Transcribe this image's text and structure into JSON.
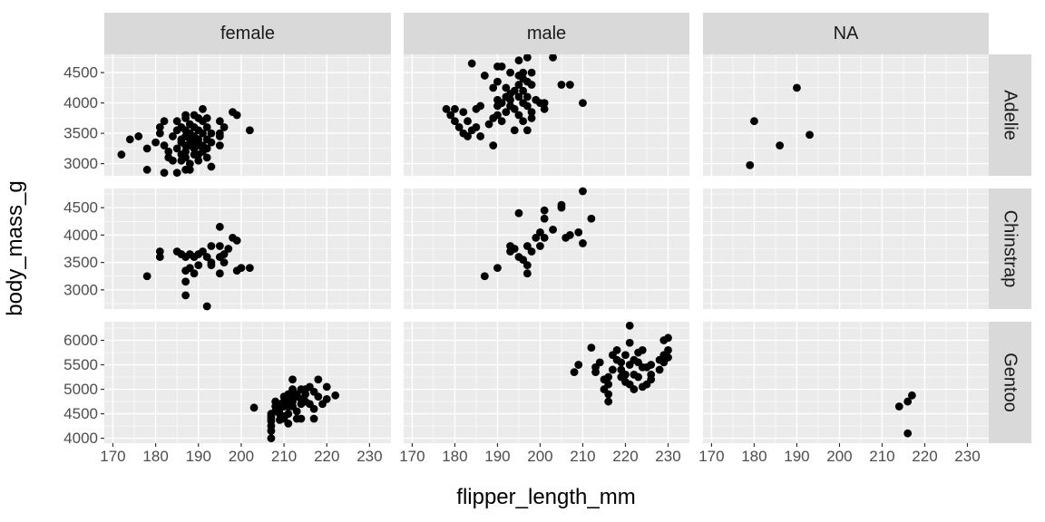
{
  "chart_data": {
    "type": "scatter",
    "xlabel": "flipper_length_mm",
    "ylabel": "body_mass_g",
    "xlim": [
      168,
      235
    ],
    "x_ticks": [
      170,
      180,
      190,
      200,
      210,
      220,
      230
    ],
    "facet_cols": [
      "female",
      "male",
      "NA"
    ],
    "facet_rows": [
      "Adelie",
      "Chinstrap",
      "Gentoo"
    ],
    "rows_scales": [
      {
        "ylim": [
          2800,
          4800
        ],
        "ticks": [
          3000,
          3500,
          4000,
          4500
        ]
      },
      {
        "ylim": [
          2650,
          4850
        ],
        "ticks": [
          3000,
          3500,
          4000,
          4500
        ]
      },
      {
        "ylim": [
          3900,
          6380
        ],
        "ticks": [
          4000,
          4500,
          5000,
          5500,
          6000
        ]
      }
    ],
    "grid": true,
    "panels": [
      {
        "row": "Adelie",
        "col": "female",
        "points": [
          [
            172,
            3150
          ],
          [
            174,
            3400
          ],
          [
            176,
            3450
          ],
          [
            178,
            3250
          ],
          [
            178,
            2900
          ],
          [
            180,
            3350
          ],
          [
            181,
            3500
          ],
          [
            181,
            3600
          ],
          [
            182,
            3700
          ],
          [
            182,
            3300
          ],
          [
            182,
            2850
          ],
          [
            183,
            3200
          ],
          [
            183,
            3100
          ],
          [
            184,
            3050
          ],
          [
            184,
            3450
          ],
          [
            185,
            2850
          ],
          [
            185,
            3550
          ],
          [
            185,
            3700
          ],
          [
            185,
            3250
          ],
          [
            186,
            3600
          ],
          [
            186,
            3400
          ],
          [
            186,
            3350
          ],
          [
            186,
            3150
          ],
          [
            186,
            3050
          ],
          [
            187,
            3800
          ],
          [
            187,
            3750
          ],
          [
            187,
            3550
          ],
          [
            187,
            3450
          ],
          [
            187,
            3300
          ],
          [
            187,
            3200
          ],
          [
            187,
            3100
          ],
          [
            187,
            2900
          ],
          [
            188,
            3650
          ],
          [
            188,
            3500
          ],
          [
            188,
            3400
          ],
          [
            188,
            3300
          ],
          [
            188,
            3000
          ],
          [
            188,
            2900
          ],
          [
            189,
            3800
          ],
          [
            189,
            3600
          ],
          [
            189,
            3450
          ],
          [
            189,
            3350
          ],
          [
            189,
            3250
          ],
          [
            189,
            3150
          ],
          [
            190,
            3750
          ],
          [
            190,
            3550
          ],
          [
            190,
            3400
          ],
          [
            190,
            3300
          ],
          [
            190,
            3150
          ],
          [
            190,
            3050
          ],
          [
            191,
            3900
          ],
          [
            191,
            3700
          ],
          [
            191,
            3500
          ],
          [
            191,
            3300
          ],
          [
            191,
            3200
          ],
          [
            192,
            3750
          ],
          [
            192,
            3600
          ],
          [
            192,
            3400
          ],
          [
            192,
            3250
          ],
          [
            192,
            3100
          ],
          [
            193,
            3500
          ],
          [
            193,
            3350
          ],
          [
            193,
            2950
          ],
          [
            195,
            3700
          ],
          [
            195,
            3500
          ],
          [
            195,
            3450
          ],
          [
            195,
            3300
          ],
          [
            196,
            3600
          ],
          [
            198,
            3850
          ],
          [
            199,
            3800
          ],
          [
            202,
            3550
          ]
        ]
      },
      {
        "row": "Adelie",
        "col": "male",
        "points": [
          [
            178,
            3900
          ],
          [
            179,
            3800
          ],
          [
            180,
            3900
          ],
          [
            180,
            3700
          ],
          [
            181,
            3600
          ],
          [
            182,
            3850
          ],
          [
            182,
            3500
          ],
          [
            183,
            3450
          ],
          [
            183,
            3700
          ],
          [
            184,
            4650
          ],
          [
            184,
            3550
          ],
          [
            185,
            3900
          ],
          [
            185,
            3600
          ],
          [
            186,
            3950
          ],
          [
            186,
            3450
          ],
          [
            187,
            4450
          ],
          [
            188,
            3650
          ],
          [
            189,
            4250
          ],
          [
            189,
            3750
          ],
          [
            189,
            3300
          ],
          [
            190,
            4600
          ],
          [
            190,
            4350
          ],
          [
            190,
            4050
          ],
          [
            190,
            3950
          ],
          [
            190,
            3800
          ],
          [
            191,
            4600
          ],
          [
            191,
            4000
          ],
          [
            191,
            3700
          ],
          [
            192,
            4250
          ],
          [
            192,
            4100
          ],
          [
            192,
            3850
          ],
          [
            193,
            4500
          ],
          [
            193,
            4150
          ],
          [
            193,
            4050
          ],
          [
            193,
            3950
          ],
          [
            194,
            4200
          ],
          [
            194,
            3900
          ],
          [
            194,
            3550
          ],
          [
            195,
            4700
          ],
          [
            195,
            4450
          ],
          [
            195,
            4300
          ],
          [
            195,
            4100
          ],
          [
            195,
            3800
          ],
          [
            196,
            4500
          ],
          [
            196,
            4400
          ],
          [
            196,
            4200
          ],
          [
            196,
            4000
          ],
          [
            196,
            3700
          ],
          [
            197,
            4750
          ],
          [
            197,
            4350
          ],
          [
            197,
            4100
          ],
          [
            197,
            3950
          ],
          [
            197,
            3550
          ],
          [
            198,
            4500
          ],
          [
            198,
            4300
          ],
          [
            198,
            3850
          ],
          [
            198,
            3750
          ],
          [
            199,
            4050
          ],
          [
            200,
            4000
          ],
          [
            201,
            4000
          ],
          [
            201,
            3900
          ],
          [
            203,
            4750
          ],
          [
            205,
            4300
          ],
          [
            207,
            4300
          ],
          [
            210,
            4000
          ]
        ]
      },
      {
        "row": "Adelie",
        "col": "NA",
        "points": [
          [
            179,
            2975
          ],
          [
            180,
            3700
          ],
          [
            186,
            3300
          ],
          [
            190,
            4250
          ],
          [
            193,
            3475
          ]
        ]
      },
      {
        "row": "Chinstrap",
        "col": "female",
        "points": [
          [
            178,
            3250
          ],
          [
            181,
            3700
          ],
          [
            181,
            3600
          ],
          [
            185,
            3700
          ],
          [
            186,
            3650
          ],
          [
            187,
            3600
          ],
          [
            187,
            3350
          ],
          [
            187,
            3150
          ],
          [
            187,
            2900
          ],
          [
            188,
            3650
          ],
          [
            188,
            3400
          ],
          [
            189,
            3600
          ],
          [
            189,
            3300
          ],
          [
            190,
            3650
          ],
          [
            190,
            3450
          ],
          [
            191,
            3700
          ],
          [
            192,
            2700
          ],
          [
            192,
            3600
          ],
          [
            193,
            3800
          ],
          [
            193,
            3450
          ],
          [
            193,
            3500
          ],
          [
            195,
            4150
          ],
          [
            195,
            3800
          ],
          [
            195,
            3600
          ],
          [
            195,
            3300
          ],
          [
            196,
            3650
          ],
          [
            196,
            3500
          ],
          [
            197,
            3750
          ],
          [
            198,
            3950
          ],
          [
            199,
            3900
          ],
          [
            199,
            3350
          ],
          [
            200,
            3400
          ],
          [
            202,
            3400
          ]
        ]
      },
      {
        "row": "Chinstrap",
        "col": "male",
        "points": [
          [
            187,
            3250
          ],
          [
            190,
            3400
          ],
          [
            193,
            3800
          ],
          [
            193,
            3700
          ],
          [
            194,
            3750
          ],
          [
            195,
            4400
          ],
          [
            195,
            3600
          ],
          [
            196,
            3550
          ],
          [
            197,
            3800
          ],
          [
            197,
            3450
          ],
          [
            197,
            3300
          ],
          [
            198,
            3700
          ],
          [
            199,
            3950
          ],
          [
            200,
            4050
          ],
          [
            200,
            3800
          ],
          [
            201,
            4450
          ],
          [
            201,
            4300
          ],
          [
            201,
            3950
          ],
          [
            203,
            4100
          ],
          [
            205,
            4550
          ],
          [
            205,
            4500
          ],
          [
            206,
            3950
          ],
          [
            207,
            4000
          ],
          [
            209,
            4050
          ],
          [
            210,
            4800
          ],
          [
            210,
            3850
          ],
          [
            212,
            4300
          ]
        ]
      },
      {
        "row": "Chinstrap",
        "col": "NA",
        "points": []
      },
      {
        "row": "Gentoo",
        "col": "female",
        "points": [
          [
            203,
            4625
          ],
          [
            207,
            4000
          ],
          [
            207,
            4150
          ],
          [
            207,
            4250
          ],
          [
            207,
            4350
          ],
          [
            207,
            4400
          ],
          [
            207,
            4450
          ],
          [
            207,
            4500
          ],
          [
            208,
            4550
          ],
          [
            208,
            4650
          ],
          [
            208,
            4750
          ],
          [
            209,
            4375
          ],
          [
            209,
            4500
          ],
          [
            209,
            4600
          ],
          [
            209,
            4700
          ],
          [
            210,
            4750
          ],
          [
            210,
            4450
          ],
          [
            210,
            4850
          ],
          [
            210,
            4400
          ],
          [
            210,
            4650
          ],
          [
            211,
            4650
          ],
          [
            211,
            4800
          ],
          [
            211,
            4900
          ],
          [
            211,
            4500
          ],
          [
            211,
            4300
          ],
          [
            212,
            4875
          ],
          [
            212,
            4650
          ],
          [
            212,
            5000
          ],
          [
            212,
            4750
          ],
          [
            213,
            4550
          ],
          [
            213,
            4850
          ],
          [
            213,
            4900
          ],
          [
            213,
            4400
          ],
          [
            214,
            5000
          ],
          [
            214,
            4800
          ],
          [
            214,
            4700
          ],
          [
            215,
            5000
          ],
          [
            215,
            4750
          ],
          [
            215,
            4900
          ],
          [
            216,
            5050
          ],
          [
            216,
            4700
          ],
          [
            217,
            4950
          ],
          [
            217,
            4600
          ],
          [
            217,
            4400
          ],
          [
            218,
            5200
          ],
          [
            218,
            4850
          ],
          [
            219,
            4700
          ],
          [
            220,
            5050
          ],
          [
            220,
            4800
          ],
          [
            222,
            4875
          ],
          [
            212,
            5200
          ],
          [
            214,
            4400
          ]
        ]
      },
      {
        "row": "Gentoo",
        "col": "male",
        "points": [
          [
            208,
            5350
          ],
          [
            209,
            5500
          ],
          [
            212,
            5850
          ],
          [
            213,
            5450
          ],
          [
            213,
            5350
          ],
          [
            214,
            5550
          ],
          [
            215,
            5200
          ],
          [
            215,
            5000
          ],
          [
            216,
            5100
          ],
          [
            216,
            4900
          ],
          [
            216,
            4750
          ],
          [
            217,
            5700
          ],
          [
            217,
            5400
          ],
          [
            218,
            5600
          ],
          [
            218,
            5800
          ],
          [
            219,
            5550
          ],
          [
            219,
            5250
          ],
          [
            220,
            5700
          ],
          [
            220,
            5300
          ],
          [
            220,
            5150
          ],
          [
            221,
            6300
          ],
          [
            221,
            5950
          ],
          [
            221,
            5500
          ],
          [
            221,
            5100
          ],
          [
            222,
            5600
          ],
          [
            222,
            5300
          ],
          [
            222,
            5000
          ],
          [
            223,
            5750
          ],
          [
            223,
            5550
          ],
          [
            223,
            5250
          ],
          [
            224,
            5800
          ],
          [
            224,
            5450
          ],
          [
            225,
            5450
          ],
          [
            225,
            5100
          ],
          [
            226,
            5500
          ],
          [
            226,
            5200
          ],
          [
            228,
            5600
          ],
          [
            228,
            5400
          ],
          [
            229,
            6000
          ],
          [
            229,
            5700
          ],
          [
            229,
            5550
          ],
          [
            230,
            6050
          ],
          [
            230,
            5800
          ],
          [
            230,
            5650
          ],
          [
            226,
            5300
          ],
          [
            224,
            5050
          ],
          [
            219,
            5400
          ],
          [
            216,
            5250
          ]
        ]
      },
      {
        "row": "Gentoo",
        "col": "NA",
        "points": [
          [
            214,
            4650
          ],
          [
            216,
            4100
          ],
          [
            216,
            4750
          ],
          [
            217,
            4875
          ]
        ]
      }
    ]
  }
}
